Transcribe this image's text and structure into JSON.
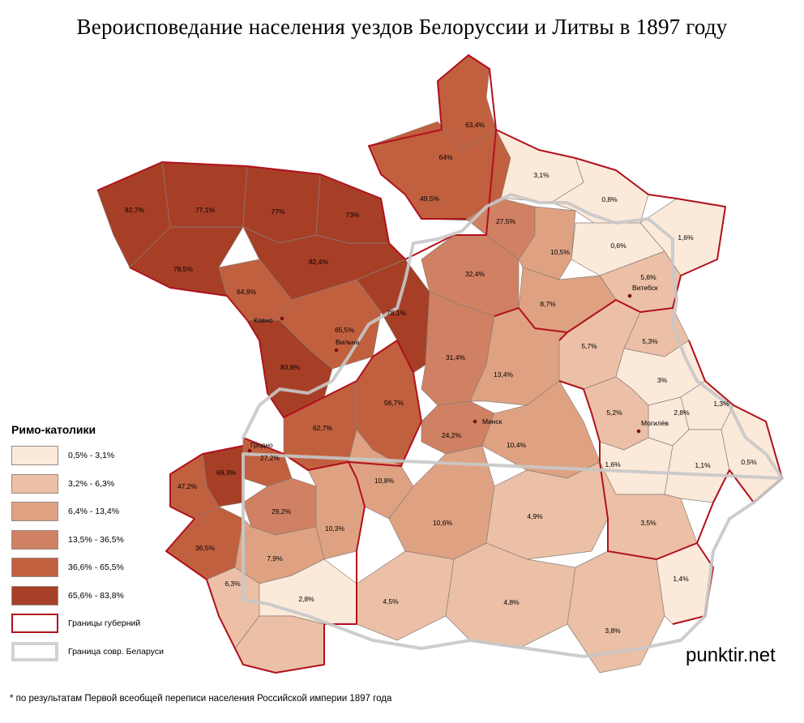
{
  "title": "Вероисповедание населения уездов Белоруссии и Литвы в 1897 году",
  "legend": {
    "title": "Римо-католики",
    "items": [
      {
        "label": "0,5% - 3,1%",
        "color": "#fbe9da"
      },
      {
        "label": "3,2% - 6,3%",
        "color": "#ebc0a6"
      },
      {
        "label": "6,4% - 13,4%",
        "color": "#dea282"
      },
      {
        "label": "13,5% - 36,5%",
        "color": "#d08063"
      },
      {
        "label": "36,6% - 65,5%",
        "color": "#c1603f"
      },
      {
        "label": "65,6% - 83,8%",
        "color": "#a73f27"
      }
    ],
    "gov_border_label": "Границы губерний",
    "by_border_label": "Граница совр.  Беларуси"
  },
  "districts": [
    {
      "value": "63,4%"
    },
    {
      "value": "64%"
    },
    {
      "value": "49,5%"
    },
    {
      "value": "82,7%"
    },
    {
      "value": "77,1%"
    },
    {
      "value": "77%"
    },
    {
      "value": "73%"
    },
    {
      "value": "82,4%"
    },
    {
      "value": "78,5%"
    },
    {
      "value": "64,9%"
    },
    {
      "value": "27,5%"
    },
    {
      "value": "3,1%"
    },
    {
      "value": "0,8%"
    },
    {
      "value": "0,6%"
    },
    {
      "value": "1,6%"
    },
    {
      "value": "10,5%"
    },
    {
      "value": "5,6%"
    },
    {
      "value": "8,7%"
    },
    {
      "value": "32,4%"
    },
    {
      "value": "78,1%"
    },
    {
      "value": "65,5%"
    },
    {
      "value": "83,8%"
    },
    {
      "value": "31,4%"
    },
    {
      "value": "13,4%"
    },
    {
      "value": "5,7%"
    },
    {
      "value": "5,3%"
    },
    {
      "value": "3%"
    },
    {
      "value": "1,3%"
    },
    {
      "value": "2,8%"
    },
    {
      "value": "5,2%"
    },
    {
      "value": "56,7%"
    },
    {
      "value": "62,7%"
    },
    {
      "value": "24,2%"
    },
    {
      "value": "10,4%"
    },
    {
      "value": "1,6%"
    },
    {
      "value": "1,1%"
    },
    {
      "value": "0,5%"
    },
    {
      "value": "27,2%"
    },
    {
      "value": "69,3%"
    },
    {
      "value": "47,2%"
    },
    {
      "value": "10,8%"
    },
    {
      "value": "29,2%"
    },
    {
      "value": "10,3%"
    },
    {
      "value": "10,6%"
    },
    {
      "value": "4,9%"
    },
    {
      "value": "3,5%"
    },
    {
      "value": "36,5%"
    },
    {
      "value": "7,9%"
    },
    {
      "value": "6,3%"
    },
    {
      "value": "2,8%"
    },
    {
      "value": "4,5%"
    },
    {
      "value": "4,8%"
    },
    {
      "value": "1,4%"
    },
    {
      "value": "3,8%"
    }
  ],
  "cities": [
    {
      "name": "Ковно"
    },
    {
      "name": "Вильна"
    },
    {
      "name": "Витебск"
    },
    {
      "name": "Минск"
    },
    {
      "name": "Могилёв"
    },
    {
      "name": "Гродно"
    }
  ],
  "brand": "punktir.net",
  "footnote": "* по результатам Первой всеобщей переписи населения Российской империи 1897 года"
}
